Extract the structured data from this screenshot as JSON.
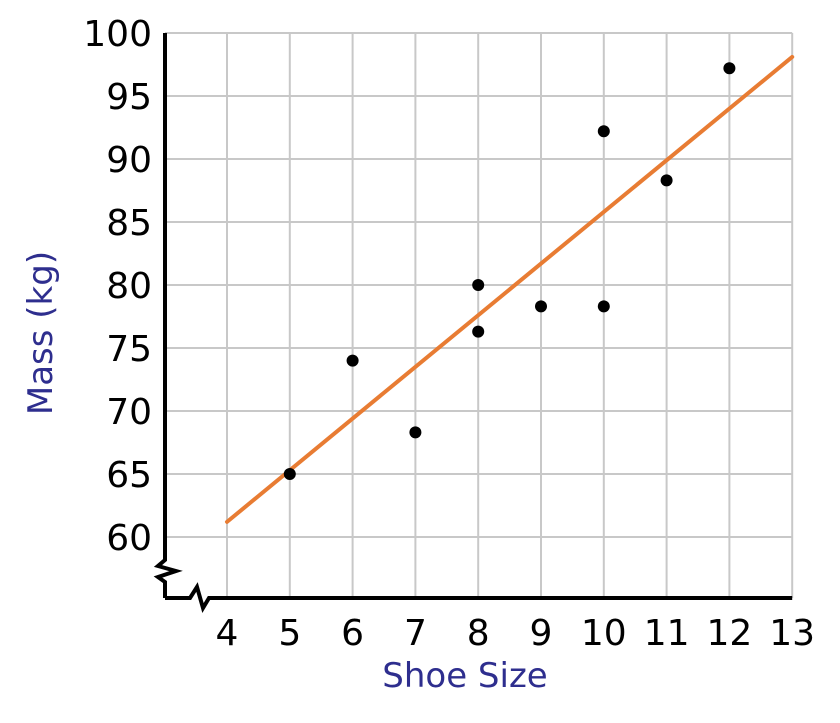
{
  "chart_data": {
    "type": "scatter",
    "title": "",
    "xlabel": "Shoe Size",
    "ylabel": "Mass (kg)",
    "xlim": [
      4,
      13
    ],
    "ylim": [
      60,
      100
    ],
    "axis_break": "both-axes",
    "grid": true,
    "x_ticks": [
      "4",
      "5",
      "6",
      "7",
      "8",
      "9",
      "10",
      "11",
      "12",
      "13"
    ],
    "y_ticks": [
      "60",
      "65",
      "70",
      "75",
      "80",
      "85",
      "90",
      "95",
      "100"
    ],
    "points": [
      {
        "x": 5,
        "y": 65
      },
      {
        "x": 6,
        "y": 74
      },
      {
        "x": 7,
        "y": 68.3
      },
      {
        "x": 8,
        "y": 80
      },
      {
        "x": 8,
        "y": 76.3
      },
      {
        "x": 9,
        "y": 78.3
      },
      {
        "x": 10,
        "y": 92.2
      },
      {
        "x": 10,
        "y": 78.3
      },
      {
        "x": 11,
        "y": 88.3
      },
      {
        "x": 12,
        "y": 97.2
      }
    ],
    "trend_line": {
      "from": {
        "x": 4,
        "y": 61.2
      },
      "to": {
        "x": 13,
        "y": 98.1
      }
    },
    "colors": {
      "label": "#2e2e8e",
      "trend": "#e87c33",
      "grid": "#c8c8c8",
      "axis": "#000000",
      "point": "#000000"
    }
  }
}
